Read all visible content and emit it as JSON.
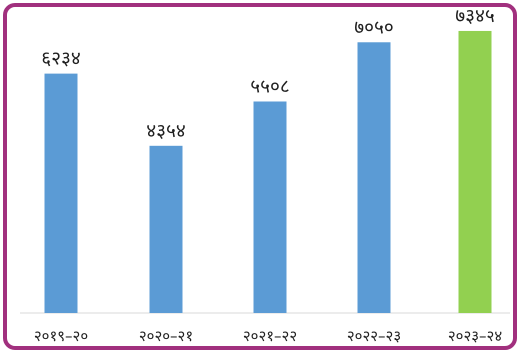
{
  "chart_data": {
    "type": "bar",
    "categories": [
      "२०१९–२०",
      "२०२०–२१",
      "२०२१–२२",
      "२०२२–२३",
      "२०२३–२४"
    ],
    "values": [
      6234,
      4354,
      5508,
      7050,
      7345
    ],
    "value_labels": [
      "६२३४",
      "४३५४",
      "५५०८",
      "७०५०",
      "७३४५"
    ],
    "ylim": [
      0,
      7500
    ],
    "grid": false,
    "legend": "none",
    "bar_colors": [
      "#5b9bd5",
      "#5b9bd5",
      "#5b9bd5",
      "#5b9bd5",
      "#92d050"
    ],
    "frame_color": "#a1307e"
  }
}
